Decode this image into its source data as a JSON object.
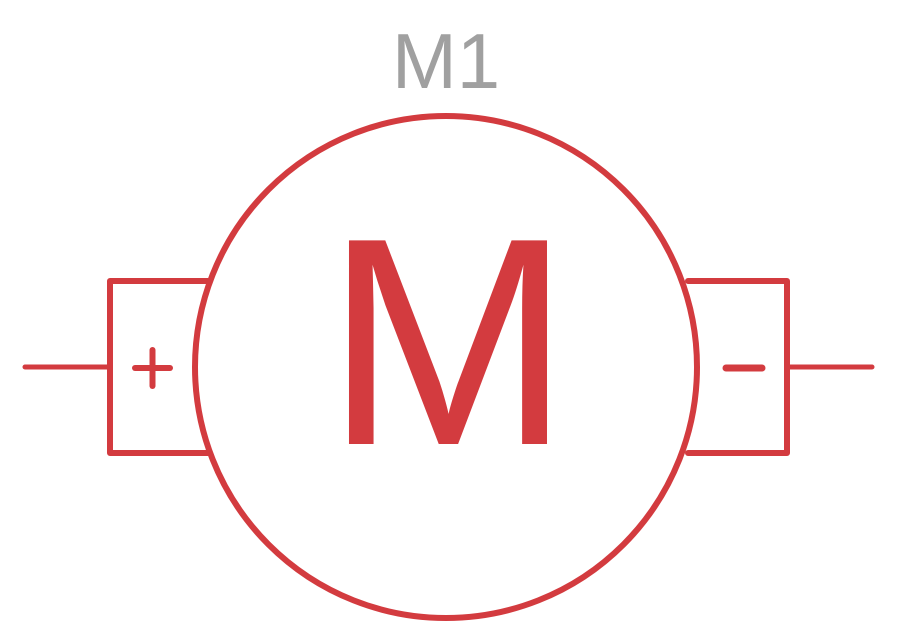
{
  "component": {
    "reference": "M1",
    "symbol_letter": "M",
    "positive_terminal": "+",
    "negative_terminal": "−"
  },
  "colors": {
    "symbol": "#d33b3f",
    "reference_label": "#a0a0a0",
    "background": "#ffffff"
  }
}
